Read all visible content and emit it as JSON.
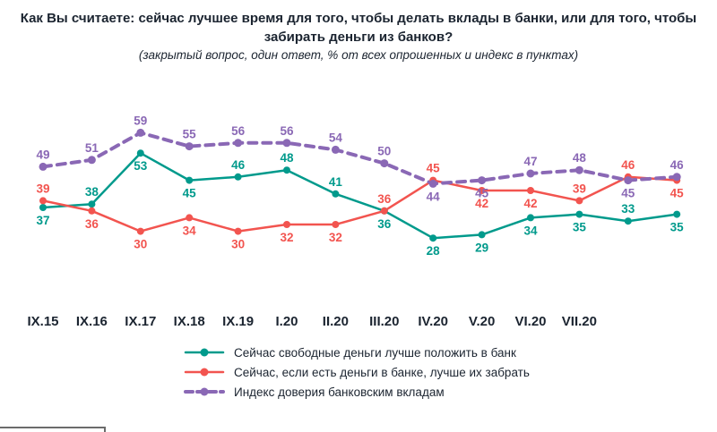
{
  "header": {
    "title_line1": "Как Вы считаете: сейчас лучшее время для того, чтобы делать вклады в банки, или для того, чтобы",
    "title_line2": "забирать деньги из банков?",
    "subtitle": "(закрытый вопрос, один ответ, % от всех опрошенных и индекс в пунктах)"
  },
  "chart_data": {
    "type": "line",
    "categories": [
      "IX.15",
      "IX.16",
      "IX.17",
      "IX.18",
      "IX.19",
      "I.20",
      "II.20",
      "III.20",
      "IV.20",
      "V.20",
      "VI.20",
      "VII.20",
      "",
      ""
    ],
    "ylim": [
      25,
      62
    ],
    "grid": false,
    "legend_position": "bottom",
    "series": [
      {
        "name": "Сейчас свободные деньги лучше положить в банк",
        "color": "#009a8c",
        "dashed": false,
        "values": [
          37,
          38,
          53,
          45,
          46,
          48,
          41,
          36,
          28,
          29,
          34,
          35,
          33,
          35
        ],
        "label_side": [
          "b",
          "a",
          "b",
          "b",
          "a",
          "a",
          "a",
          "b",
          "b",
          "b",
          "b",
          "b",
          "a",
          "b"
        ]
      },
      {
        "name": "Сейчас, если есть деньги в банке, лучше их забрать",
        "color": "#f2544f",
        "dashed": false,
        "values": [
          39,
          36,
          30,
          34,
          30,
          32,
          32,
          36,
          45,
          42,
          42,
          39,
          46,
          45
        ],
        "label_side": [
          "a",
          "b",
          "b",
          "b",
          "b",
          "b",
          "b",
          "a",
          "a",
          "b",
          "b",
          "a",
          "a",
          "b"
        ]
      },
      {
        "name": "Индекс доверия банковским вкладам",
        "color": "#8a68b5",
        "dashed": true,
        "values": [
          49,
          51,
          59,
          55,
          56,
          56,
          54,
          50,
          44,
          45,
          47,
          48,
          45,
          46
        ],
        "label_side": [
          "a",
          "a",
          "a",
          "a",
          "a",
          "a",
          "a",
          "a",
          "b",
          "b",
          "a",
          "a",
          "b",
          "a"
        ]
      }
    ]
  }
}
